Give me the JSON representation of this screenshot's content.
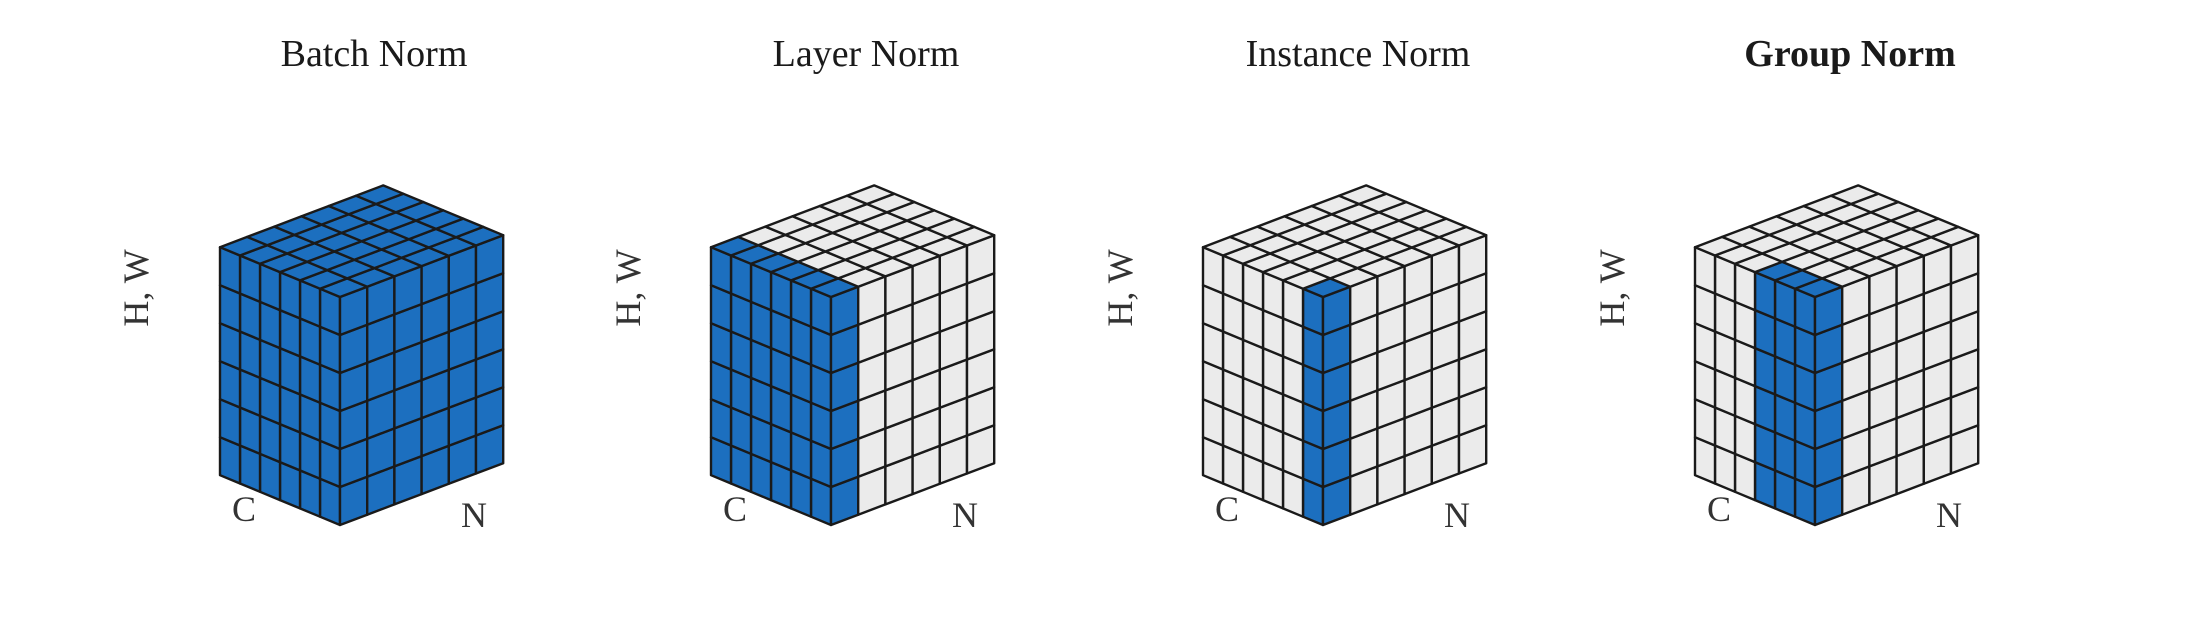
{
  "colors": {
    "highlight": "#1C6FBF",
    "cell": "#EBEBEB",
    "stroke": "#1a1a1a"
  },
  "grid": {
    "c": 6,
    "n": 6,
    "hw": 6
  },
  "panels": [
    {
      "title": "Batch Norm",
      "bold": false,
      "hw_label": "H, W",
      "c_label": "C",
      "n_label": "N",
      "highlight": {
        "c": [
          0,
          6
        ],
        "n": [
          0,
          6
        ],
        "hw": [
          0,
          6
        ],
        "description": "front slice"
      }
    },
    {
      "title": "Layer Norm",
      "bold": false,
      "hw_label": "H, W",
      "c_label": "C",
      "n_label": "N",
      "highlight": {
        "c": [
          0,
          6
        ],
        "n": [
          0,
          1
        ],
        "hw": [
          0,
          6
        ]
      }
    },
    {
      "title": "Instance Norm",
      "bold": false,
      "hw_label": "H, W",
      "c_label": "C",
      "n_label": "N",
      "highlight": {
        "c": [
          0,
          1
        ],
        "n": [
          0,
          1
        ],
        "hw": [
          0,
          6
        ]
      }
    },
    {
      "title": "Group Norm",
      "bold": true,
      "hw_label": "H, W",
      "c_label": "C",
      "n_label": "N",
      "highlight": {
        "c": [
          0,
          3
        ],
        "n": [
          0,
          1
        ],
        "hw": [
          0,
          6
        ]
      }
    }
  ]
}
